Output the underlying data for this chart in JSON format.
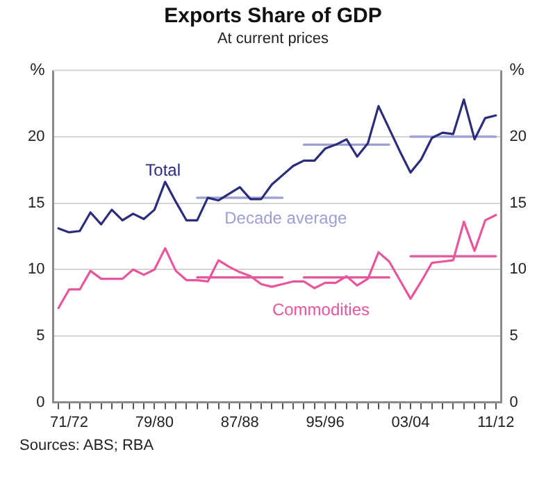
{
  "chart_data": {
    "type": "line",
    "title": "Exports Share of GDP",
    "subtitle": "At current prices",
    "ylabel": "%",
    "y2label": "%",
    "categories": [
      null,
      "71/72",
      null,
      null,
      null,
      null,
      null,
      null,
      null,
      "79/80",
      null,
      null,
      null,
      null,
      null,
      null,
      null,
      "87/88",
      null,
      null,
      null,
      null,
      null,
      null,
      null,
      "95/96",
      null,
      null,
      null,
      null,
      null,
      null,
      null,
      "03/04",
      null,
      null,
      null,
      null,
      null,
      null,
      null,
      "11/12"
    ],
    "series": [
      {
        "name": "Total",
        "color": "#2b2d7c",
        "values": [
          13.1,
          12.8,
          12.9,
          14.3,
          13.4,
          14.5,
          13.7,
          14.2,
          13.8,
          14.5,
          16.6,
          15.1,
          13.7,
          13.7,
          15.4,
          15.2,
          15.7,
          16.2,
          15.3,
          15.3,
          16.4,
          17.1,
          17.8,
          18.2,
          18.2,
          19.1,
          19.4,
          19.8,
          18.5,
          19.5,
          22.3,
          20.6,
          18.9,
          17.3,
          18.3,
          19.9,
          20.3,
          20.2,
          22.8,
          19.8,
          21.4,
          21.6
        ]
      },
      {
        "name": "Decade average",
        "color": "#9c9fd0",
        "values": [
          null,
          null,
          null,
          null,
          null,
          null,
          null,
          null,
          null,
          null,
          null,
          null,
          null,
          15.4,
          15.4,
          15.4,
          15.4,
          15.4,
          15.4,
          15.4,
          15.4,
          15.4,
          null,
          19.4,
          19.4,
          19.4,
          19.4,
          19.4,
          19.4,
          19.4,
          19.4,
          19.4,
          null,
          20.0,
          20.0,
          20.0,
          20.0,
          20.0,
          20.0,
          20.0,
          20.0,
          20.0
        ]
      },
      {
        "name": "Commodities",
        "color": "#e8559b",
        "values": [
          7.1,
          8.5,
          8.5,
          9.9,
          9.3,
          9.3,
          9.3,
          10.0,
          9.6,
          10.0,
          11.6,
          9.9,
          9.2,
          9.2,
          9.1,
          10.7,
          10.2,
          9.8,
          9.5,
          8.9,
          8.7,
          8.9,
          9.1,
          9.1,
          8.6,
          9.0,
          9.0,
          9.5,
          8.8,
          9.3,
          11.3,
          10.6,
          9.2,
          7.8,
          9.1,
          10.5,
          10.6,
          10.7,
          13.6,
          11.4,
          13.7,
          14.1
        ]
      },
      {
        "color": "#e8559b",
        "values": [
          null,
          null,
          null,
          null,
          null,
          null,
          null,
          null,
          null,
          null,
          null,
          null,
          null,
          9.4,
          9.4,
          9.4,
          9.4,
          9.4,
          9.4,
          9.4,
          9.4,
          9.4,
          null,
          9.4,
          9.4,
          9.4,
          9.4,
          9.4,
          9.4,
          9.4,
          9.4,
          9.4,
          null,
          11.0,
          11.0,
          11.0,
          11.0,
          11.0,
          11.0,
          11.0,
          11.0,
          11.0
        ]
      }
    ],
    "ylim": [
      0,
      25
    ],
    "yticks": [
      0,
      5,
      10,
      15,
      20
    ],
    "y2lim": [
      0,
      25
    ],
    "y2ticks": [
      0,
      5,
      10,
      15,
      20
    ],
    "grid": "y",
    "marker": "none",
    "line_style": "solid",
    "annotations": [
      "Sources: ABS; RBA"
    ]
  }
}
